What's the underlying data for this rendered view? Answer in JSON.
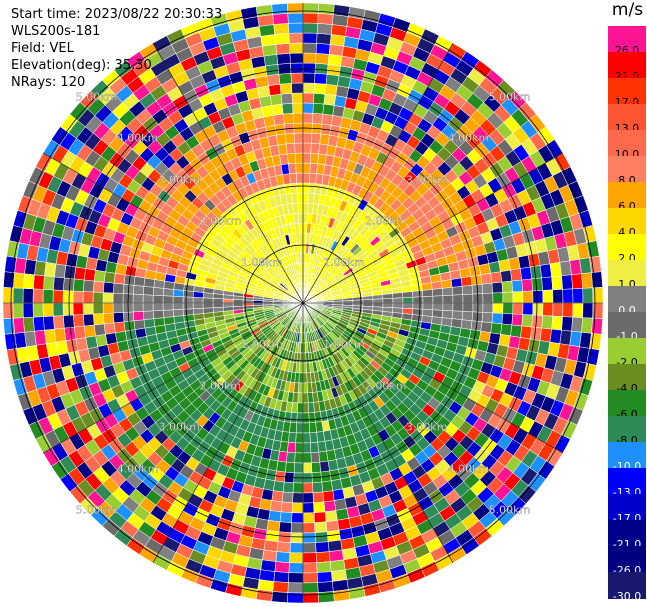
{
  "header": {
    "start_time": "Start time: 2023/08/22 20:30:33",
    "station": "WLS200s-181",
    "field": "Field: VEL",
    "elevation": "Elevation(deg): 35.30",
    "nrays": "NRays: 120"
  },
  "colorbar": {
    "unit": "m/s",
    "levels": [
      {
        "label": "26.0",
        "color": "#ff1493"
      },
      {
        "label": "21.0",
        "color": "#ff0000"
      },
      {
        "label": "17.0",
        "color": "#ff3300"
      },
      {
        "label": "13.0",
        "color": "#ff5533"
      },
      {
        "label": "10.0",
        "color": "#ff6a4d"
      },
      {
        "label": "8.0",
        "color": "#ff8060"
      },
      {
        "label": "6.0",
        "color": "#ffa500"
      },
      {
        "label": "4.0",
        "color": "#ffd700"
      },
      {
        "label": "2.0",
        "color": "#ffff00"
      },
      {
        "label": "1.0",
        "color": "#eeee44"
      },
      {
        "label": "0.0",
        "color": "#808080"
      },
      {
        "label": "-1.0",
        "color": "#6b6b6b"
      },
      {
        "label": "-2.0",
        "color": "#9acd32"
      },
      {
        "label": "-4.0",
        "color": "#6b8e23"
      },
      {
        "label": "-6.0",
        "color": "#228b22"
      },
      {
        "label": "-8.0",
        "color": "#2e8b57"
      },
      {
        "label": "-10.0",
        "color": "#1e90ff"
      },
      {
        "label": "-13.0",
        "color": "#0000ff"
      },
      {
        "label": "-17.0",
        "color": "#0000cd"
      },
      {
        "label": "-21.0",
        "color": "#00008b"
      },
      {
        "label": "-26.0",
        "color": "#000080"
      },
      {
        "label": "-30.0",
        "color": "#191970"
      }
    ]
  },
  "rings": [
    {
      "label": "1.00km"
    },
    {
      "label": "2.00km"
    },
    {
      "label": "3.00km"
    },
    {
      "label": "4.00km"
    },
    {
      "label": "5.00km"
    }
  ]
}
